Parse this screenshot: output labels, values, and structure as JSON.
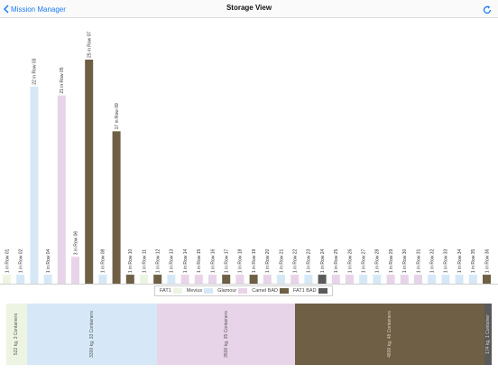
{
  "nav": {
    "back_label": "Mission Manager",
    "title": "Storage View"
  },
  "colors": {
    "FAT1": "#edf5e2",
    "Mevius": "#d6e8f7",
    "Glamour": "#e8d4e8",
    "Camel BAD": "#6e5f45",
    "FAT1 BAD": "#5a5a5a"
  },
  "legend": [
    "FAT1",
    "Mevius",
    "Glamour",
    "Camel BAD",
    "FAT1 BAD"
  ],
  "chart_data": {
    "type": "bar",
    "categories": [
      "Row 01",
      "Row 02",
      "Row 03",
      "Row 04",
      "Row 05",
      "Row 06",
      "Row 07",
      "Row 08",
      "Row 09",
      "Row 10",
      "Row 11",
      "Row 12",
      "Row 13",
      "Row 14",
      "Row 15",
      "Row 16",
      "Row 17",
      "Row 18",
      "Row 19",
      "Row 20",
      "Row 21",
      "Row 22",
      "Row 23",
      "Row 24",
      "Row 25",
      "Row 26",
      "Row 27",
      "Row 28",
      "Row 29",
      "Row 30",
      "Row 31",
      "Row 32",
      "Row 33",
      "Row 34",
      "Row 35",
      "Row 36"
    ],
    "values": [
      1,
      1,
      22,
      1,
      21,
      3,
      25,
      1,
      17,
      1,
      1,
      1,
      1,
      1,
      1,
      1,
      1,
      1,
      1,
      1,
      1,
      1,
      1,
      1,
      1,
      1,
      1,
      1,
      1,
      1,
      1,
      1,
      1,
      1,
      1,
      1
    ],
    "bar_groups": [
      "FAT1",
      "Mevius",
      "Mevius",
      "Mevius",
      "Glamour",
      "Glamour",
      "Camel BAD",
      "Mevius",
      "Camel BAD",
      "Camel BAD",
      "FAT1",
      "Camel BAD",
      "Mevius",
      "Glamour",
      "Glamour",
      "Glamour",
      "Camel BAD",
      "Glamour",
      "Camel BAD",
      "Glamour",
      "Mevius",
      "Glamour",
      "Mevius",
      "FAT1 BAD",
      "Glamour",
      "Glamour",
      "Mevius",
      "Mevius",
      "Glamour",
      "Glamour",
      "Glamour",
      "Mevius",
      "Mevius",
      "Mevius",
      "Mevius",
      "Camel BAD"
    ],
    "labels": [
      "1 in Row 01",
      "1 in Row 02",
      "22 in Row 03",
      "1 in Row 04",
      "21 in Row 05",
      "3 in Row 06",
      "25 in Row 07",
      "1 in Row 08",
      "17 in Row 09",
      "1 in Row 10",
      "1 in Row 11",
      "1 in Row 12",
      "1 in Row 13",
      "1 in Row 14",
      "1 in Row 15",
      "1 in Row 16",
      "1 in Row 17",
      "1 in Row 18",
      "1 in Row 19",
      "1 in Row 20",
      "1 in Row 21",
      "1 in Row 22",
      "1 in Row 23",
      "1 in Row 24",
      "1 in Row 25",
      "1 in Row 26",
      "1 in Row 27",
      "1 in Row 28",
      "1 in Row 29",
      "1 in Row 30",
      "1 in Row 31",
      "1 in Row 32",
      "1 in Row 33",
      "1 in Row 34",
      "1 in Row 35",
      "1 in Row 36"
    ],
    "ylim": [
      0,
      25
    ],
    "grid": false,
    "legend_position": "bottom-center"
  },
  "summary": [
    {
      "group": "FAT1",
      "weight_kg": 522,
      "containers": 3,
      "label": "522 kg, 3 Containers"
    },
    {
      "group": "Mevius",
      "weight_kg": 3300,
      "containers": 33,
      "label": "3300 kg, 33 Containers"
    },
    {
      "group": "Glamour",
      "weight_kg": 3500,
      "containers": 35,
      "label": "3500 kg, 35 Containers"
    },
    {
      "group": "Camel BAD",
      "weight_kg": 4800,
      "containers": 48,
      "label": "4800 kg, 48 Containers"
    },
    {
      "group": "FAT1 BAD",
      "weight_kg": 174,
      "containers": 1,
      "label": "174 kg, 1 Container"
    }
  ]
}
